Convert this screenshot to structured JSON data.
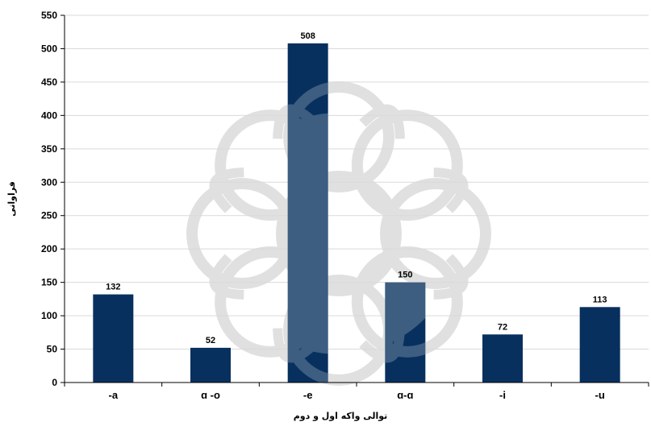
{
  "chart_data": {
    "type": "bar",
    "categories": [
      "-a",
      "ɑ -o",
      "-e",
      "ɑ-ɑ",
      "-i",
      "-u"
    ],
    "values": [
      132,
      52,
      508,
      150,
      72,
      113
    ],
    "data_labels": [
      "132",
      "52",
      "508",
      "150",
      "72",
      "113"
    ],
    "xlabel": "توالی واکه اول و دوم",
    "ylabel": "فراوانی",
    "ylim": [
      0,
      550
    ],
    "yticks": [
      0,
      50,
      100,
      150,
      200,
      250,
      300,
      350,
      400,
      450,
      500,
      550
    ],
    "grid": true,
    "bar_color": "#07305e",
    "watermark_color": "#c8c8c8"
  }
}
